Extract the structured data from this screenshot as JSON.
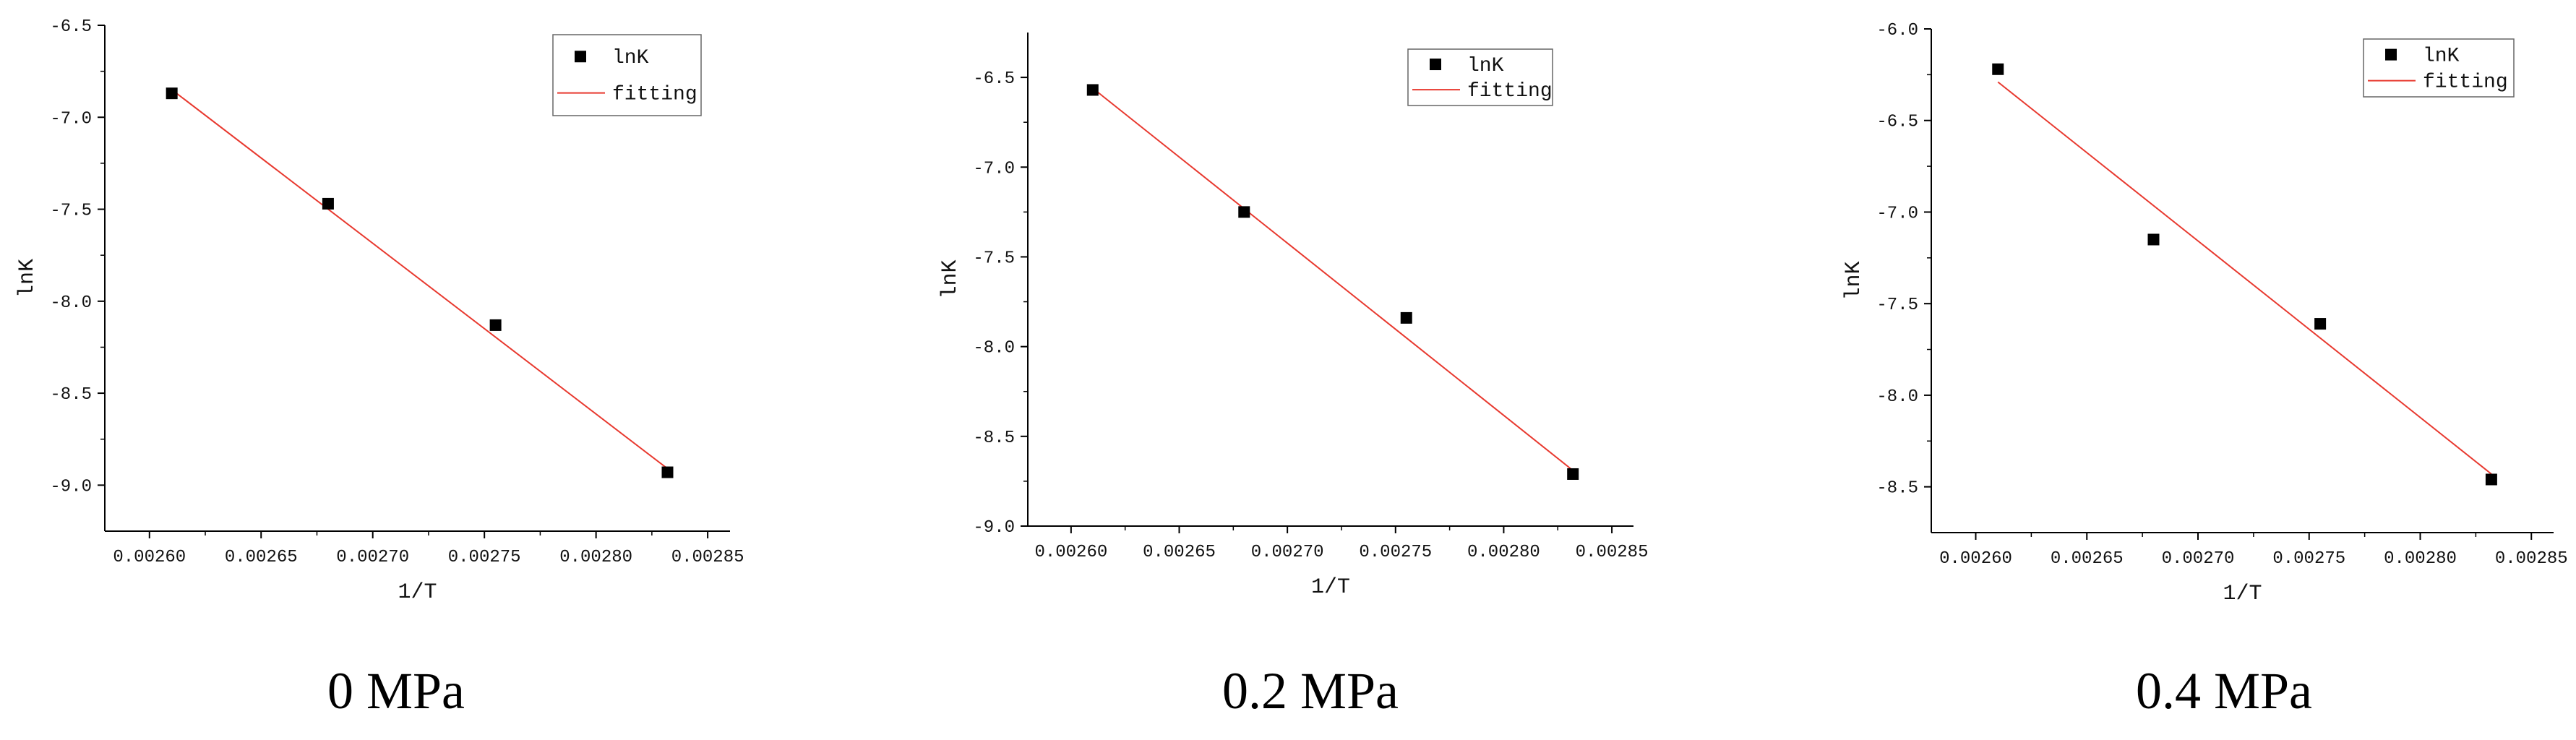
{
  "chart_data": [
    {
      "type": "scatter",
      "caption": "0 MPa",
      "xlabel": "1/T",
      "ylabel": "lnK",
      "xlim": [
        0.00258,
        0.00286
      ],
      "ylim": [
        -9.25,
        -6.5
      ],
      "xticks": [
        "0.00260",
        "0.00265",
        "0.00270",
        "0.00275",
        "0.00280",
        "0.00285"
      ],
      "xtick_values": [
        0.0026,
        0.00265,
        0.0027,
        0.00275,
        0.0028,
        0.00285
      ],
      "yticks": [
        "-6.5",
        "-7.0",
        "-7.5",
        "-8.0",
        "-8.5",
        "-9.0"
      ],
      "ytick_values": [
        -6.5,
        -7.0,
        -7.5,
        -8.0,
        -8.5,
        -9.0
      ],
      "series": [
        {
          "name": "lnK",
          "kind": "points",
          "color": "#000000",
          "x": [
            0.00261,
            0.00268,
            0.002755,
            0.002832
          ],
          "y": [
            -6.87,
            -7.47,
            -8.13,
            -8.93
          ]
        },
        {
          "name": "fitting",
          "kind": "line",
          "color": "#e8392f",
          "x": [
            0.00261,
            0.002832
          ],
          "y": [
            -6.85,
            -8.91
          ]
        }
      ],
      "legend": [
        "lnK",
        "fitting"
      ],
      "legend_position": "top-right"
    },
    {
      "type": "scatter",
      "caption": "0.2 MPa",
      "xlabel": "1/T",
      "ylabel": "lnK",
      "xlim": [
        0.00258,
        0.00286
      ],
      "ylim": [
        -9.0,
        -6.25
      ],
      "xticks": [
        "0.00260",
        "0.00265",
        "0.00270",
        "0.00275",
        "0.00280",
        "0.00285"
      ],
      "xtick_values": [
        0.0026,
        0.00265,
        0.0027,
        0.00275,
        0.0028,
        0.00285
      ],
      "yticks": [
        "-6.5",
        "-7.0",
        "-7.5",
        "-8.0",
        "-8.5",
        "-9.0"
      ],
      "ytick_values": [
        -6.5,
        -7.0,
        -7.5,
        -8.0,
        -8.5,
        -9.0
      ],
      "series": [
        {
          "name": "lnK",
          "kind": "points",
          "color": "#000000",
          "x": [
            0.00261,
            0.00268,
            0.002755,
            0.002832
          ],
          "y": [
            -6.57,
            -7.25,
            -7.84,
            -8.71
          ]
        },
        {
          "name": "fitting",
          "kind": "line",
          "color": "#e8392f",
          "x": [
            0.00261,
            0.002832
          ],
          "y": [
            -6.56,
            -8.69
          ]
        }
      ],
      "legend": [
        "lnK",
        "fitting"
      ],
      "legend_position": "top-right"
    },
    {
      "type": "scatter",
      "caption": "0.4 MPa",
      "xlabel": "1/T",
      "ylabel": "lnK",
      "xlim": [
        0.00258,
        0.00286
      ],
      "ylim": [
        -8.75,
        -6.0
      ],
      "xticks": [
        "0.00260",
        "0.00265",
        "0.00270",
        "0.00275",
        "0.00280",
        "0.00285"
      ],
      "xtick_values": [
        0.0026,
        0.00265,
        0.0027,
        0.00275,
        0.0028,
        0.00285
      ],
      "yticks": [
        "-6.0",
        "-6.5",
        "-7.0",
        "-7.5",
        "-8.0",
        "-8.5"
      ],
      "ytick_values": [
        -6.0,
        -6.5,
        -7.0,
        -7.5,
        -8.0,
        -8.5
      ],
      "series": [
        {
          "name": "lnK",
          "kind": "points",
          "color": "#000000",
          "x": [
            0.00261,
            0.00268,
            0.002755,
            0.002832
          ],
          "y": [
            -6.22,
            -7.15,
            -7.61,
            -8.46
          ]
        },
        {
          "name": "fitting",
          "kind": "line",
          "color": "#e8392f",
          "x": [
            0.00261,
            0.002832
          ],
          "y": [
            -6.29,
            -8.43
          ]
        }
      ],
      "legend": [
        "lnK",
        "fitting"
      ],
      "legend_position": "top-right"
    }
  ]
}
